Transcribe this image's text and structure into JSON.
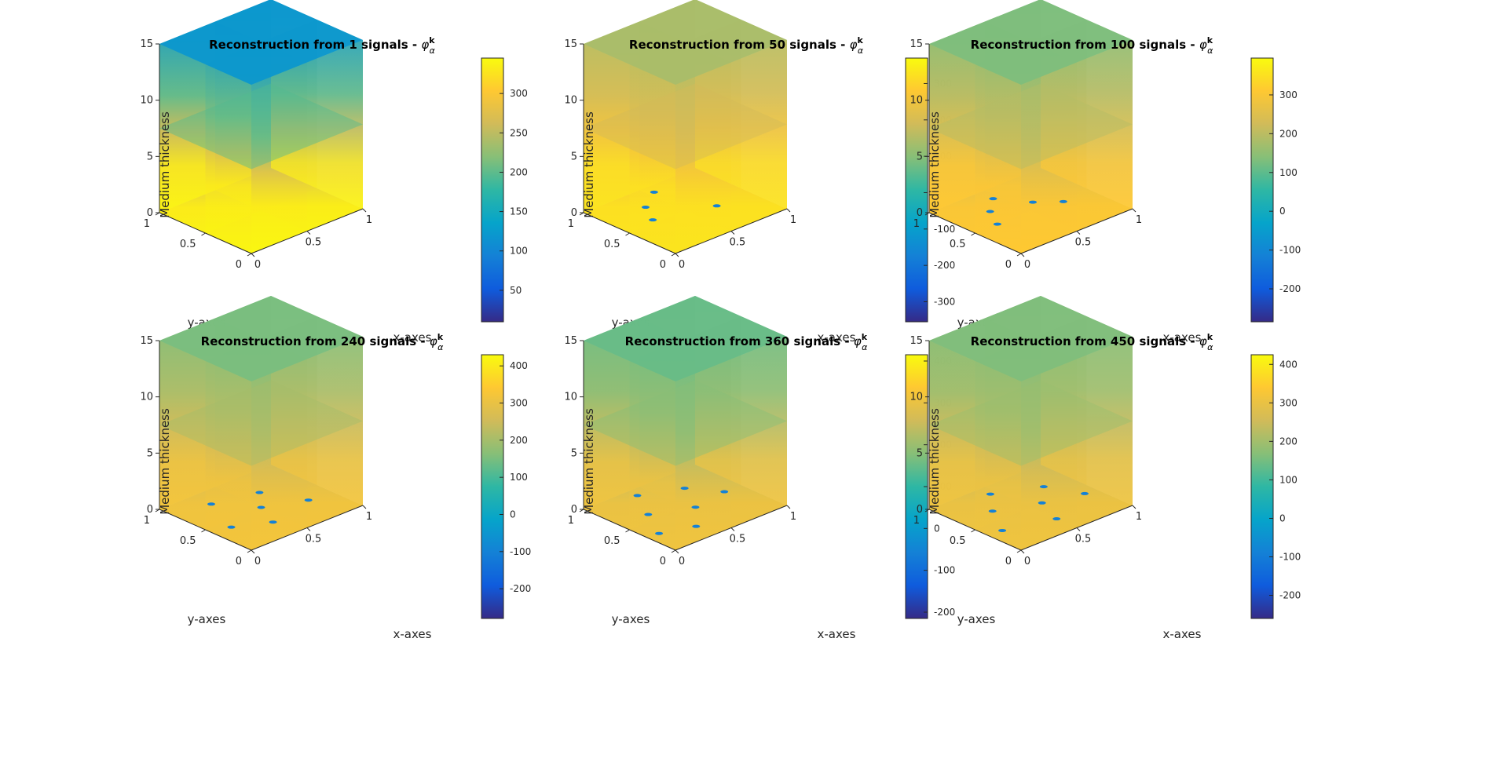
{
  "figure": {
    "colormap": "parula",
    "colormap_stops": [
      "#352a87",
      "#0f5cdd",
      "#1481d6",
      "#06a4ca",
      "#2eb7a4",
      "#87bf77",
      "#d1bb59",
      "#fec832",
      "#f9fb0e"
    ]
  },
  "chart_data": [
    {
      "type": "volumetric-slice",
      "title": "Reconstruction from 1 signals - ",
      "title_symbol": "φ",
      "title_superscript": "k",
      "title_subscript": "α",
      "xlabel": "x-axes",
      "ylabel": "y-axes",
      "zlabel": "Medium thickness",
      "xlim": [
        0,
        1
      ],
      "ylim": [
        0,
        1
      ],
      "zlim": [
        0,
        15
      ],
      "x_ticks": [
        "0",
        "0.5",
        "1"
      ],
      "y_ticks": [
        "0",
        "0.5",
        "1"
      ],
      "z_ticks": [
        "0",
        "5",
        "10",
        "15"
      ],
      "colorbar": {
        "range": [
          10,
          345
        ],
        "ticks": [
          50,
          100,
          150,
          200,
          250,
          300
        ]
      },
      "top_value": 120,
      "mid_value": 205,
      "bottom_value": 330,
      "scatter_anomalies": []
    },
    {
      "type": "volumetric-slice",
      "title": "Reconstruction from 50 signals - ",
      "title_symbol": "φ",
      "title_superscript": "k",
      "title_subscript": "α",
      "xlabel": "x-axes",
      "ylabel": "y-axes",
      "zlabel": "Medium thickness",
      "xlim": [
        0,
        1
      ],
      "ylim": [
        0,
        1
      ],
      "zlim": [
        0,
        15
      ],
      "x_ticks": [
        "0",
        "0.5",
        "1"
      ],
      "y_ticks": [
        "0",
        "0.5",
        "1"
      ],
      "z_ticks": [
        "0",
        "5",
        "10",
        "15"
      ],
      "colorbar": {
        "range": [
          -355,
          370
        ],
        "ticks": [
          -300,
          -200,
          -100,
          0,
          100,
          200,
          300
        ]
      },
      "top_value": 140,
      "mid_value": 200,
      "bottom_value": 320,
      "scatter_anomalies": [
        [
          0.25,
          0.55
        ],
        [
          0.35,
          0.75
        ],
        [
          0.55,
          0.9
        ],
        [
          0.7,
          0.4
        ]
      ]
    },
    {
      "type": "volumetric-slice",
      "title": "Reconstruction from 100 signals - ",
      "title_symbol": "φ",
      "title_superscript": "k",
      "title_subscript": "α",
      "xlabel": "x-axes",
      "ylabel": "y-axes",
      "zlabel": "Medium thickness",
      "xlim": [
        0,
        1
      ],
      "ylim": [
        0,
        1
      ],
      "zlim": [
        0,
        15
      ],
      "x_ticks": [
        "0",
        "0.5",
        "1"
      ],
      "y_ticks": [
        "0",
        "0.5",
        "1"
      ],
      "z_ticks": [
        "0",
        "5",
        "10",
        "15"
      ],
      "colorbar": {
        "range": [
          -285,
          395
        ],
        "ticks": [
          -200,
          -100,
          0,
          100,
          200,
          300
        ]
      },
      "top_value": 130,
      "mid_value": 200,
      "bottom_value": 300,
      "scatter_anomalies": [
        [
          0.2,
          0.5
        ],
        [
          0.3,
          0.7
        ],
        [
          0.45,
          0.85
        ],
        [
          0.6,
          0.6
        ],
        [
          0.75,
          0.45
        ]
      ]
    },
    {
      "type": "volumetric-slice",
      "title": "Reconstruction from 240 signals - ",
      "title_symbol": "φ",
      "title_superscript": "k",
      "title_subscript": "α",
      "xlabel": "x-axes",
      "ylabel": "y-axes",
      "zlabel": "Medium thickness",
      "xlim": [
        0,
        1
      ],
      "ylim": [
        0,
        1
      ],
      "zlim": [
        0,
        15
      ],
      "x_ticks": [
        "0",
        "0.5",
        "1"
      ],
      "y_ticks": [
        "0",
        "0.5",
        "1"
      ],
      "z_ticks": [
        "0",
        "5",
        "10",
        "15"
      ],
      "colorbar": {
        "range": [
          -280,
          430
        ],
        "ticks": [
          -200,
          -100,
          0,
          100,
          200,
          300,
          400
        ]
      },
      "top_value": 150,
      "mid_value": 210,
      "bottom_value": 310,
      "scatter_anomalies": [
        [
          0.15,
          0.4
        ],
        [
          0.3,
          0.8
        ],
        [
          0.5,
          0.5
        ],
        [
          0.65,
          0.7
        ],
        [
          0.8,
          0.35
        ],
        [
          0.4,
          0.25
        ]
      ]
    },
    {
      "type": "volumetric-slice",
      "title": "Reconstruction from 360 signals - ",
      "title_symbol": "φ",
      "title_superscript": "k",
      "title_subscript": "α",
      "xlabel": "x-axes",
      "ylabel": "y-axes",
      "zlabel": "Medium thickness",
      "xlim": [
        0,
        1
      ],
      "ylim": [
        0,
        1
      ],
      "zlim": [
        0,
        15
      ],
      "x_ticks": [
        "0",
        "0.5",
        "1"
      ],
      "y_ticks": [
        "0",
        "0.5",
        "1"
      ],
      "z_ticks": [
        "0",
        "5",
        "10",
        "15"
      ],
      "colorbar": {
        "range": [
          -215,
          415
        ],
        "ticks": [
          -200,
          -100,
          0,
          100,
          200,
          300,
          400
        ]
      },
      "top_value": 150,
      "mid_value": 190,
      "bottom_value": 300,
      "scatter_anomalies": [
        [
          0.1,
          0.3
        ],
        [
          0.25,
          0.6
        ],
        [
          0.4,
          0.9
        ],
        [
          0.55,
          0.45
        ],
        [
          0.7,
          0.75
        ],
        [
          0.85,
          0.5
        ],
        [
          0.35,
          0.2
        ]
      ]
    },
    {
      "type": "volumetric-slice",
      "title": "Reconstruction from 450 signals - ",
      "title_symbol": "φ",
      "title_superscript": "k",
      "title_subscript": "α",
      "xlabel": "x-axes",
      "ylabel": "y-axes",
      "zlabel": "Medium thickness",
      "xlim": [
        0,
        1
      ],
      "ylim": [
        0,
        1
      ],
      "zlim": [
        0,
        15
      ],
      "x_ticks": [
        "0",
        "0.5",
        "1"
      ],
      "y_ticks": [
        "0",
        "0.5",
        "1"
      ],
      "z_ticks": [
        "0",
        "5",
        "10",
        "15"
      ],
      "colorbar": {
        "range": [
          -260,
          425
        ],
        "ticks": [
          -200,
          -100,
          0,
          100,
          200,
          300,
          400
        ]
      },
      "top_value": 160,
      "mid_value": 200,
      "bottom_value": 300,
      "scatter_anomalies": [
        [
          0.12,
          0.35
        ],
        [
          0.28,
          0.65
        ],
        [
          0.45,
          0.88
        ],
        [
          0.6,
          0.5
        ],
        [
          0.78,
          0.7
        ],
        [
          0.9,
          0.4
        ],
        [
          0.5,
          0.22
        ]
      ]
    }
  ]
}
